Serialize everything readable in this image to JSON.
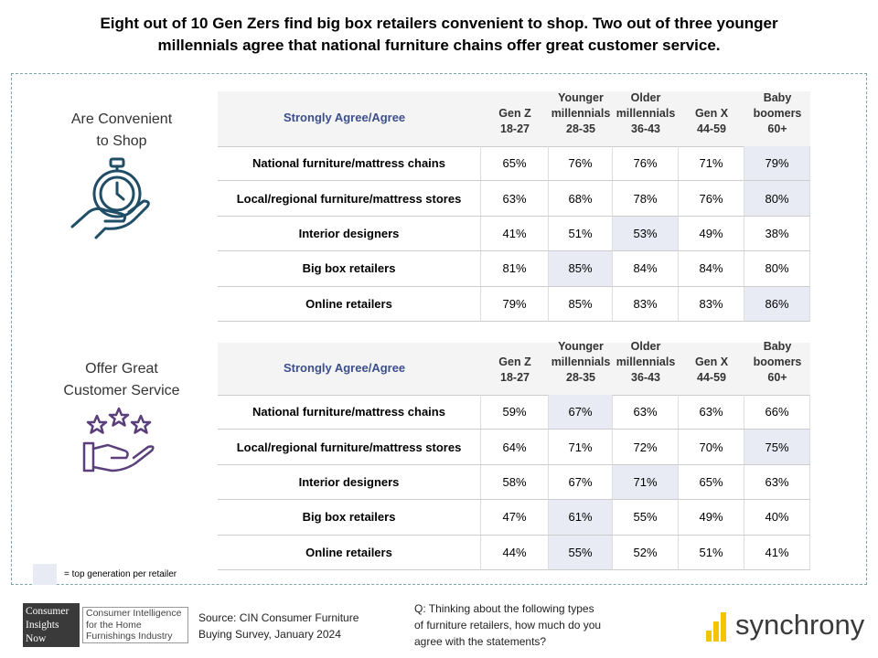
{
  "title": [
    "Eight out of 10 Gen Zers find big box retailers convenient to shop. Two out of three younger",
    "millennials agree that national  furniture chains offer great customer service."
  ],
  "sections": [
    {
      "label": [
        "Are Convenient",
        "to Shop"
      ],
      "table": {
        "header_label": "Strongly Agree/Agree",
        "columns": [
          [
            "Gen Z",
            "18-27"
          ],
          [
            "Younger",
            "millennials",
            "28-35"
          ],
          [
            "Older",
            "millennials",
            "36-43"
          ],
          [
            "Gen X",
            "44-59"
          ],
          [
            "Baby",
            "boomers",
            "60+"
          ]
        ],
        "rows": [
          {
            "label": "National furniture/mattress chains",
            "values": [
              "65%",
              "76%",
              "76%",
              "71%",
              "79%"
            ],
            "highlight": 4
          },
          {
            "label": "Local/regional furniture/mattress stores",
            "values": [
              "63%",
              "68%",
              "78%",
              "76%",
              "80%"
            ],
            "highlight": 4
          },
          {
            "label": "Interior designers",
            "values": [
              "41%",
              "51%",
              "53%",
              "49%",
              "38%"
            ],
            "highlight": 2
          },
          {
            "label": "Big box retailers",
            "values": [
              "81%",
              "85%",
              "84%",
              "84%",
              "80%"
            ],
            "highlight": 1
          },
          {
            "label": "Online retailers",
            "values": [
              "79%",
              "85%",
              "83%",
              "83%",
              "86%"
            ],
            "highlight": 4
          }
        ]
      }
    },
    {
      "label": [
        "Offer Great",
        "Customer Service"
      ],
      "table": {
        "header_label": "Strongly Agree/Agree",
        "columns": [
          [
            "Gen Z",
            "18-27"
          ],
          [
            "Younger",
            "millennials",
            "28-35"
          ],
          [
            "Older",
            "millennials",
            "36-43"
          ],
          [
            "Gen X",
            "44-59"
          ],
          [
            "Baby",
            "boomers",
            "60+"
          ]
        ],
        "rows": [
          {
            "label": "National furniture/mattress chains",
            "values": [
              "59%",
              "67%",
              "63%",
              "63%",
              "66%"
            ],
            "highlight": 1
          },
          {
            "label": "Local/regional furniture/mattress stores",
            "values": [
              "64%",
              "71%",
              "72%",
              "70%",
              "75%"
            ],
            "highlight": 4
          },
          {
            "label": "Interior designers",
            "values": [
              "58%",
              "67%",
              "71%",
              "65%",
              "63%"
            ],
            "highlight": 2
          },
          {
            "label": "Big box retailers",
            "values": [
              "47%",
              "61%",
              "55%",
              "49%",
              "40%"
            ],
            "highlight": 1
          },
          {
            "label": "Online retailers",
            "values": [
              "44%",
              "55%",
              "52%",
              "51%",
              "41%"
            ],
            "highlight": 1
          }
        ]
      }
    }
  ],
  "legend": "= top generation per retailer",
  "footer": {
    "logo": {
      "title": [
        "Consumer",
        "Insights",
        "Now"
      ],
      "tagline": [
        "Consumer Intelligence",
        "for the Home",
        "Furnishings Industry"
      ]
    },
    "source": [
      "Source:  CIN Consumer Furniture",
      "Buying Survey, January 2024"
    ],
    "question": [
      "Q: Thinking about the following types",
      "of furniture retailers, how much do you",
      "agree with the statements?"
    ],
    "brand": "synchrony"
  }
}
